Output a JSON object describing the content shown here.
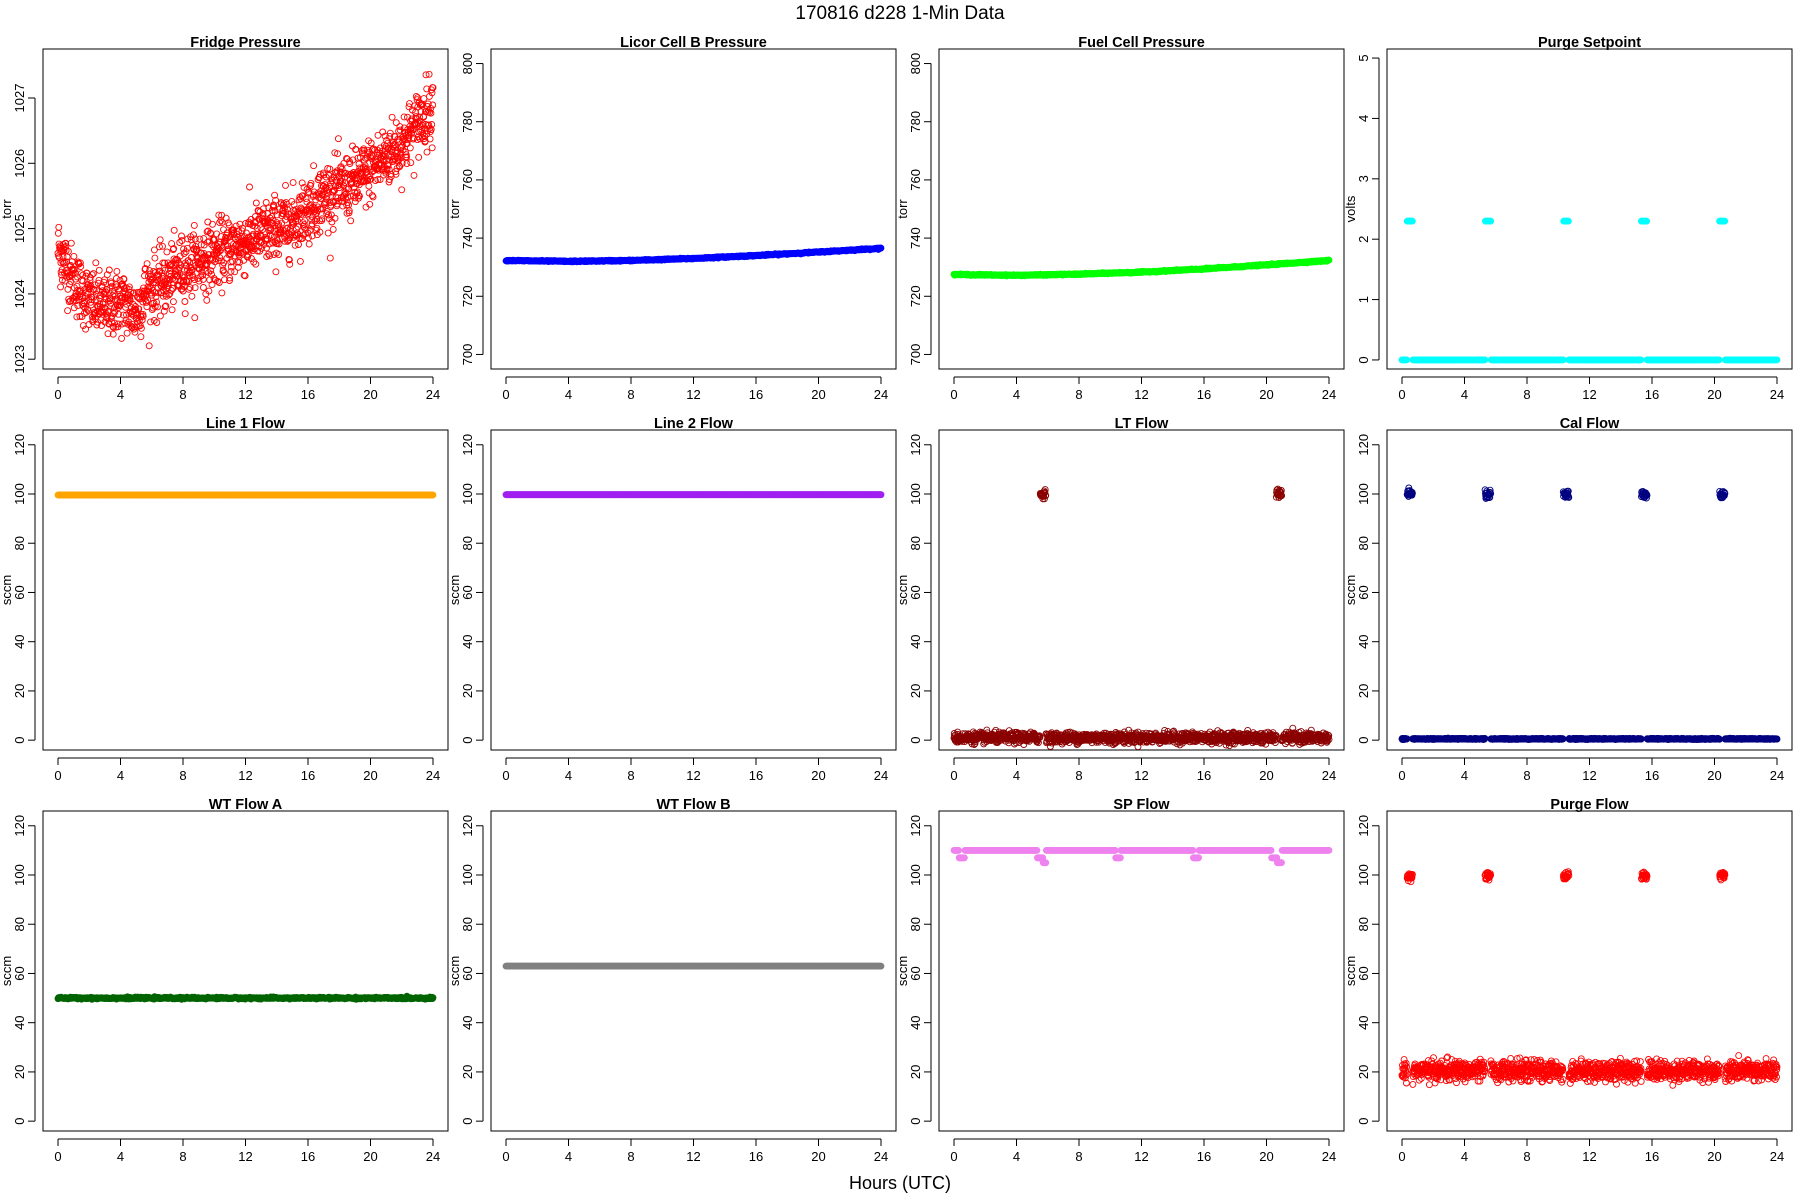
{
  "figure": {
    "title": "170816    d228    1-Min Data",
    "xlabel": "Hours (UTC)"
  },
  "chart_data": [
    {
      "type": "scatter",
      "title": "Fridge Pressure",
      "ylabel": "torr",
      "color": "#ff0000",
      "xlim": [
        0,
        24
      ],
      "ylim": [
        1022.85,
        1027.75
      ],
      "yticks": [
        1023,
        1024,
        1025,
        1026,
        1027
      ],
      "xticks": [
        0,
        4,
        8,
        12,
        16,
        20,
        24
      ],
      "marker": "open-circle",
      "x": [
        0,
        1,
        2,
        3,
        4,
        5,
        5.5,
        6,
        7,
        8,
        9,
        10,
        11,
        12,
        13,
        14,
        15,
        16,
        17,
        18,
        19,
        20,
        21,
        22,
        23,
        24
      ],
      "y": [
        1024.7,
        1024.2,
        1023.9,
        1023.8,
        1023.9,
        1023.7,
        1024.0,
        1024.1,
        1024.2,
        1024.4,
        1024.5,
        1024.6,
        1024.7,
        1024.8,
        1024.9,
        1025.0,
        1025.1,
        1025.3,
        1025.5,
        1025.6,
        1025.7,
        1025.9,
        1026.1,
        1026.3,
        1026.6,
        1026.9
      ],
      "noise": 0.55
    },
    {
      "type": "scatter",
      "title": "Licor Cell B Pressure",
      "ylabel": "torr",
      "color": "#0000ff",
      "xlim": [
        0,
        24
      ],
      "ylim": [
        695,
        805
      ],
      "yticks": [
        700,
        720,
        740,
        760,
        780,
        800
      ],
      "xticks": [
        0,
        4,
        8,
        12,
        16,
        20,
        24
      ],
      "marker": "filled",
      "x": [
        0,
        4,
        8,
        12,
        16,
        20,
        24
      ],
      "y": [
        732.3,
        732.0,
        732.3,
        733.0,
        734.0,
        735.2,
        736.5
      ],
      "noise": 0.2
    },
    {
      "type": "scatter",
      "title": "Fuel Cell Pressure",
      "ylabel": "torr",
      "color": "#00ff00",
      "xlim": [
        0,
        24
      ],
      "ylim": [
        695,
        805
      ],
      "yticks": [
        700,
        720,
        740,
        760,
        780,
        800
      ],
      "xticks": [
        0,
        4,
        8,
        12,
        16,
        20,
        24
      ],
      "marker": "filled",
      "x": [
        0,
        4,
        8,
        12,
        16,
        20,
        24
      ],
      "y": [
        727.5,
        727.2,
        727.6,
        728.3,
        729.4,
        730.8,
        732.3
      ],
      "noise": 0.2
    },
    {
      "type": "scatter",
      "title": "Purge Setpoint",
      "ylabel": "volts",
      "color": "#00ffff",
      "xlim": [
        0,
        24
      ],
      "ylim": [
        -0.15,
        5.15
      ],
      "yticks": [
        0,
        1,
        2,
        3,
        4,
        5
      ],
      "xticks": [
        0,
        4,
        8,
        12,
        16,
        20,
        24
      ],
      "marker": "filled",
      "baseline": 0,
      "events": [
        {
          "x": 0.5,
          "y": 2.3
        },
        {
          "x": 5.5,
          "y": 2.3
        },
        {
          "x": 10.5,
          "y": 2.3
        },
        {
          "x": 15.5,
          "y": 2.3
        },
        {
          "x": 20.5,
          "y": 2.3
        }
      ],
      "noise": 0
    },
    {
      "type": "scatter",
      "title": "Line 1 Flow",
      "ylabel": "sccm",
      "color": "#ffa500",
      "xlim": [
        0,
        24
      ],
      "ylim": [
        -4,
        126
      ],
      "yticks": [
        0,
        20,
        40,
        60,
        80,
        100,
        120
      ],
      "xticks": [
        0,
        4,
        8,
        12,
        16,
        20,
        24
      ],
      "marker": "filled",
      "x": [
        0,
        24
      ],
      "y": [
        99.6,
        99.6
      ],
      "noise": 0
    },
    {
      "type": "scatter",
      "title": "Line 2 Flow",
      "ylabel": "sccm",
      "color": "#a020f0",
      "xlim": [
        0,
        24
      ],
      "ylim": [
        -4,
        126
      ],
      "yticks": [
        0,
        20,
        40,
        60,
        80,
        100,
        120
      ],
      "xticks": [
        0,
        4,
        8,
        12,
        16,
        20,
        24
      ],
      "marker": "filled",
      "x": [
        0,
        24
      ],
      "y": [
        99.7,
        99.7
      ],
      "noise": 0
    },
    {
      "type": "scatter",
      "title": "LT Flow",
      "ylabel": "sccm",
      "color": "#8b0000",
      "xlim": [
        0,
        24
      ],
      "ylim": [
        -4,
        126
      ],
      "yticks": [
        0,
        20,
        40,
        60,
        80,
        100,
        120
      ],
      "xticks": [
        0,
        4,
        8,
        12,
        16,
        20,
        24
      ],
      "marker": "open-circle",
      "baseline": 1.0,
      "noise": 2.4,
      "events": [
        {
          "x": 5.7,
          "y": 100
        },
        {
          "x": 20.8,
          "y": 100
        }
      ]
    },
    {
      "type": "scatter",
      "title": "Cal Flow",
      "ylabel": "sccm",
      "color": "#000080",
      "xlim": [
        0,
        24
      ],
      "ylim": [
        -4,
        126
      ],
      "yticks": [
        0,
        20,
        40,
        60,
        80,
        100,
        120
      ],
      "xticks": [
        0,
        4,
        8,
        12,
        16,
        20,
        24
      ],
      "marker": "open-circle",
      "baseline": 0.5,
      "noise": 0.2,
      "events": [
        {
          "x": 0.5,
          "y": 99.8
        },
        {
          "x": 5.5,
          "y": 99.8
        },
        {
          "x": 10.5,
          "y": 99.8
        },
        {
          "x": 15.5,
          "y": 99.8
        },
        {
          "x": 20.5,
          "y": 99.8
        }
      ]
    },
    {
      "type": "scatter",
      "title": "WT Flow A",
      "ylabel": "sccm",
      "color": "#006400",
      "xlim": [
        0,
        24
      ],
      "ylim": [
        -4,
        126
      ],
      "yticks": [
        0,
        20,
        40,
        60,
        80,
        100,
        120
      ],
      "xticks": [
        0,
        4,
        8,
        12,
        16,
        20,
        24
      ],
      "marker": "filled",
      "x": [
        0,
        24
      ],
      "y": [
        50,
        50
      ],
      "noise": 0.35
    },
    {
      "type": "scatter",
      "title": "WT Flow B",
      "ylabel": "sccm",
      "color": "#808080",
      "xlim": [
        0,
        24
      ],
      "ylim": [
        -4,
        126
      ],
      "yticks": [
        0,
        20,
        40,
        60,
        80,
        100,
        120
      ],
      "xticks": [
        0,
        4,
        8,
        12,
        16,
        20,
        24
      ],
      "marker": "filled",
      "x": [
        0,
        24
      ],
      "y": [
        63,
        63
      ],
      "noise": 0
    },
    {
      "type": "scatter",
      "title": "SP Flow",
      "ylabel": "sccm",
      "color": "#ee82ee",
      "xlim": [
        0,
        24
      ],
      "ylim": [
        -4,
        126
      ],
      "yticks": [
        0,
        20,
        40,
        60,
        80,
        100,
        120
      ],
      "xticks": [
        0,
        4,
        8,
        12,
        16,
        20,
        24
      ],
      "marker": "filled",
      "baseline": 110,
      "noise": 0,
      "events": [
        {
          "x": 0.5,
          "y": 107
        },
        {
          "x": 5.5,
          "y": 107
        },
        {
          "x": 5.7,
          "y": 105
        },
        {
          "x": 10.5,
          "y": 107
        },
        {
          "x": 15.5,
          "y": 107
        },
        {
          "x": 20.5,
          "y": 107
        },
        {
          "x": 20.8,
          "y": 105
        }
      ]
    },
    {
      "type": "scatter",
      "title": "Purge Flow",
      "ylabel": "sccm",
      "color": "#ff0000",
      "xlim": [
        0,
        24
      ],
      "ylim": [
        -4,
        126
      ],
      "yticks": [
        0,
        20,
        40,
        60,
        80,
        100,
        120
      ],
      "xticks": [
        0,
        4,
        8,
        12,
        16,
        20,
        24
      ],
      "marker": "open-circle",
      "baseline": 20.5,
      "noise": 4.5,
      "events": [
        {
          "x": 0.5,
          "y": 99.5
        },
        {
          "x": 5.5,
          "y": 99.5
        },
        {
          "x": 10.5,
          "y": 99.5
        },
        {
          "x": 15.5,
          "y": 99.5
        },
        {
          "x": 20.5,
          "y": 99.5
        }
      ]
    }
  ]
}
